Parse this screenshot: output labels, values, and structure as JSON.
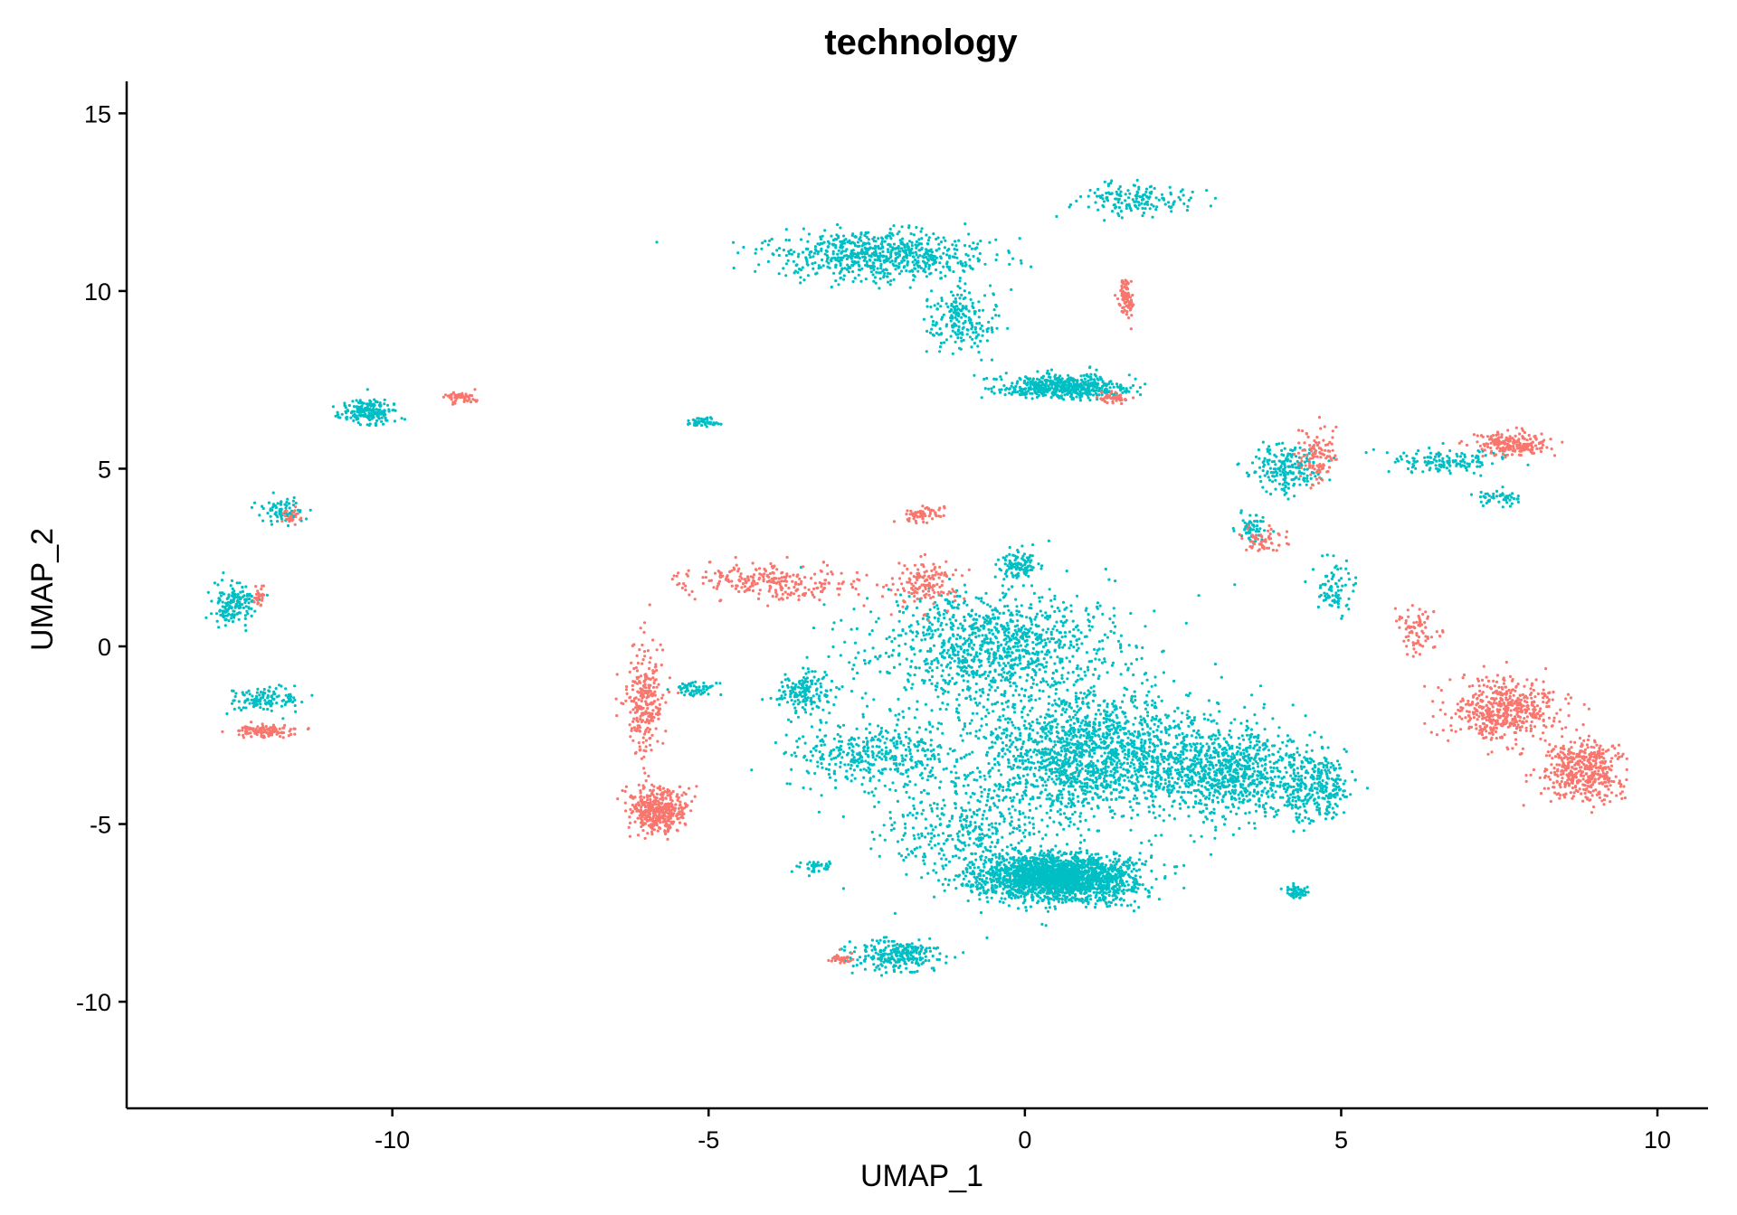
{
  "chart_data": {
    "type": "scatter",
    "title": "technology",
    "xlabel": "UMAP_1",
    "ylabel": "UMAP_2",
    "xlim": [
      -14.2,
      10.8
    ],
    "ylim": [
      -13.0,
      15.9
    ],
    "x_ticks": [
      -10,
      -5,
      0,
      5,
      10
    ],
    "x_tick_labels": [
      "-10",
      "-5",
      "0",
      "5",
      "10"
    ],
    "y_ticks": [
      -10,
      -5,
      0,
      5,
      10,
      15
    ],
    "y_tick_labels": [
      "-10",
      "-5",
      "0",
      "5",
      "10",
      "15"
    ],
    "grid": false,
    "legend": "none visible",
    "colors": {
      "group_a": "#F8766D",
      "group_b": "#00BFC4"
    },
    "clusters": [
      {
        "color": "group_b",
        "cx": 0.5,
        "cy": -6.5,
        "sx": 1.1,
        "sy": 0.6,
        "n": 2200
      },
      {
        "color": "group_b",
        "cx": 1.0,
        "cy": -3.0,
        "sx": 1.6,
        "sy": 1.6,
        "n": 1600
      },
      {
        "color": "group_b",
        "cx": 3.2,
        "cy": -3.5,
        "sx": 1.2,
        "sy": 1.2,
        "n": 900
      },
      {
        "color": "group_b",
        "cx": 4.6,
        "cy": -4.0,
        "sx": 0.5,
        "sy": 0.9,
        "n": 250
      },
      {
        "color": "group_b",
        "cx": 4.3,
        "cy": -6.9,
        "sx": 0.15,
        "sy": 0.15,
        "n": 60
      },
      {
        "color": "group_b",
        "cx": -0.5,
        "cy": 0.0,
        "sx": 1.8,
        "sy": 1.5,
        "n": 1100
      },
      {
        "color": "group_b",
        "cx": -2.5,
        "cy": -3.0,
        "sx": 1.2,
        "sy": 0.9,
        "n": 400
      },
      {
        "color": "group_b",
        "cx": -3.5,
        "cy": -1.3,
        "sx": 0.4,
        "sy": 0.5,
        "n": 160
      },
      {
        "color": "group_b",
        "cx": -5.2,
        "cy": -1.2,
        "sx": 0.3,
        "sy": 0.2,
        "n": 60
      },
      {
        "color": "group_b",
        "cx": -3.3,
        "cy": -6.2,
        "sx": 0.25,
        "sy": 0.15,
        "n": 40
      },
      {
        "color": "group_b",
        "cx": -2.0,
        "cy": -8.7,
        "sx": 0.6,
        "sy": 0.4,
        "n": 260
      },
      {
        "color": "group_b",
        "cx": -1.0,
        "cy": -5.0,
        "sx": 1.2,
        "sy": 1.3,
        "n": 400
      },
      {
        "color": "group_b",
        "cx": -0.1,
        "cy": 2.3,
        "sx": 0.3,
        "sy": 0.4,
        "n": 100
      },
      {
        "color": "group_b",
        "cx": -2.3,
        "cy": 11.0,
        "sx": 1.5,
        "sy": 0.6,
        "n": 700
      },
      {
        "color": "group_b",
        "cx": -1.0,
        "cy": 9.2,
        "sx": 0.5,
        "sy": 0.8,
        "n": 200
      },
      {
        "color": "group_b",
        "cx": 0.6,
        "cy": 7.3,
        "sx": 0.9,
        "sy": 0.3,
        "n": 550
      },
      {
        "color": "group_b",
        "cx": 1.7,
        "cy": 12.6,
        "sx": 0.9,
        "sy": 0.4,
        "n": 160
      },
      {
        "color": "group_b",
        "cx": -5.1,
        "cy": 6.3,
        "sx": 0.25,
        "sy": 0.12,
        "n": 50
      },
      {
        "color": "group_b",
        "cx": -10.4,
        "cy": 6.6,
        "sx": 0.4,
        "sy": 0.3,
        "n": 200
      },
      {
        "color": "group_b",
        "cx": -11.7,
        "cy": 3.8,
        "sx": 0.3,
        "sy": 0.3,
        "n": 80
      },
      {
        "color": "group_b",
        "cx": -12.5,
        "cy": 1.2,
        "sx": 0.3,
        "sy": 0.5,
        "n": 160
      },
      {
        "color": "group_b",
        "cx": -12.0,
        "cy": -1.5,
        "sx": 0.5,
        "sy": 0.3,
        "n": 120
      },
      {
        "color": "group_b",
        "cx": 4.1,
        "cy": 5.0,
        "sx": 0.5,
        "sy": 0.6,
        "n": 200
      },
      {
        "color": "group_b",
        "cx": 3.6,
        "cy": 3.4,
        "sx": 0.2,
        "sy": 0.4,
        "n": 60
      },
      {
        "color": "group_b",
        "cx": 4.9,
        "cy": 1.7,
        "sx": 0.3,
        "sy": 0.8,
        "n": 80
      },
      {
        "color": "group_b",
        "cx": 6.6,
        "cy": 5.2,
        "sx": 0.8,
        "sy": 0.3,
        "n": 140
      },
      {
        "color": "group_b",
        "cx": 7.5,
        "cy": 4.2,
        "sx": 0.3,
        "sy": 0.2,
        "n": 50
      },
      {
        "color": "group_a",
        "cx": -5.8,
        "cy": -4.6,
        "sx": 0.4,
        "sy": 0.6,
        "n": 420
      },
      {
        "color": "group_a",
        "cx": -6.0,
        "cy": -1.5,
        "sx": 0.3,
        "sy": 1.3,
        "n": 260
      },
      {
        "color": "group_a",
        "cx": -4.0,
        "cy": 1.8,
        "sx": 1.2,
        "sy": 0.5,
        "n": 260
      },
      {
        "color": "group_a",
        "cx": -1.6,
        "cy": 1.8,
        "sx": 0.5,
        "sy": 0.6,
        "n": 140
      },
      {
        "color": "group_a",
        "cx": -1.6,
        "cy": 3.7,
        "sx": 0.3,
        "sy": 0.2,
        "n": 60
      },
      {
        "color": "group_a",
        "cx": -2.9,
        "cy": -8.8,
        "sx": 0.15,
        "sy": 0.12,
        "n": 35
      },
      {
        "color": "group_a",
        "cx": -8.9,
        "cy": 7.0,
        "sx": 0.2,
        "sy": 0.15,
        "n": 60
      },
      {
        "color": "group_a",
        "cx": -11.6,
        "cy": 3.7,
        "sx": 0.15,
        "sy": 0.2,
        "n": 25
      },
      {
        "color": "group_a",
        "cx": -12.1,
        "cy": 1.4,
        "sx": 0.1,
        "sy": 0.25,
        "n": 30
      },
      {
        "color": "group_a",
        "cx": -12.0,
        "cy": -2.4,
        "sx": 0.4,
        "sy": 0.15,
        "n": 120
      },
      {
        "color": "group_a",
        "cx": 1.6,
        "cy": 9.8,
        "sx": 0.1,
        "sy": 0.5,
        "n": 90
      },
      {
        "color": "group_a",
        "cx": 1.4,
        "cy": 7.0,
        "sx": 0.2,
        "sy": 0.15,
        "n": 50
      },
      {
        "color": "group_a",
        "cx": 4.6,
        "cy": 5.4,
        "sx": 0.3,
        "sy": 0.7,
        "n": 110
      },
      {
        "color": "group_a",
        "cx": 3.8,
        "cy": 3.0,
        "sx": 0.3,
        "sy": 0.3,
        "n": 60
      },
      {
        "color": "group_a",
        "cx": 7.7,
        "cy": 5.7,
        "sx": 0.5,
        "sy": 0.3,
        "n": 210
      },
      {
        "color": "group_a",
        "cx": 6.2,
        "cy": 0.5,
        "sx": 0.3,
        "sy": 0.7,
        "n": 80
      },
      {
        "color": "group_a",
        "cx": 7.6,
        "cy": -1.8,
        "sx": 0.8,
        "sy": 0.8,
        "n": 500
      },
      {
        "color": "group_a",
        "cx": 8.8,
        "cy": -3.5,
        "sx": 0.6,
        "sy": 0.8,
        "n": 450
      }
    ]
  }
}
